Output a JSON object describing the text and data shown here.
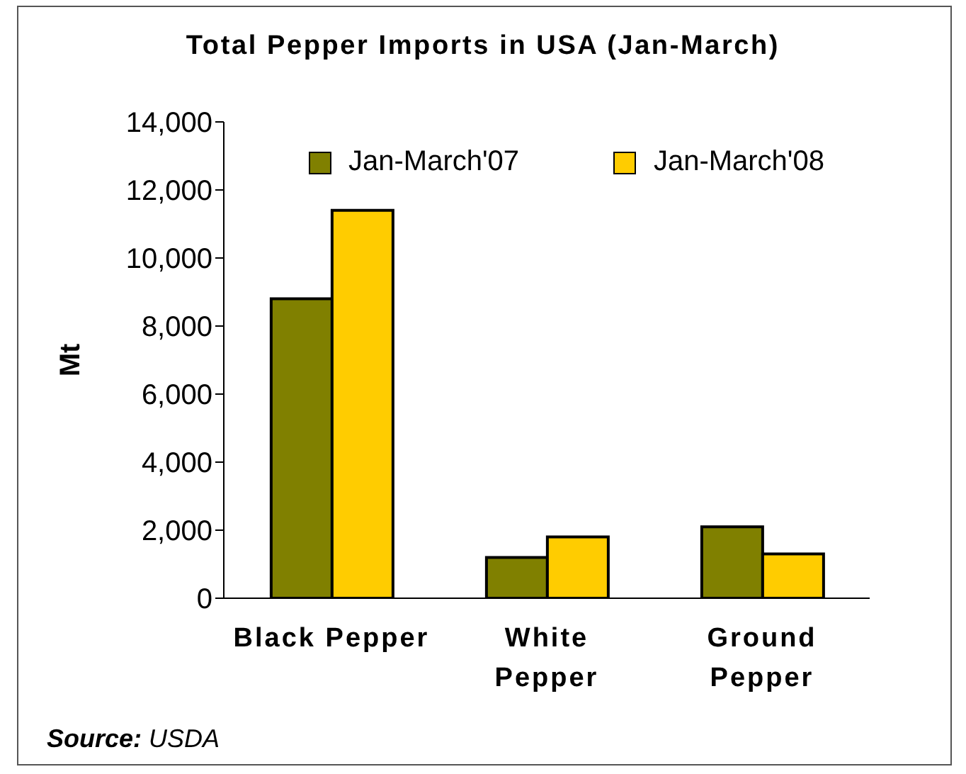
{
  "chart_data": {
    "type": "bar",
    "title": "Total Pepper Imports in USA (Jan-March)",
    "ylabel": "Mt",
    "categories": [
      "Black Pepper",
      "White\nPepper",
      "Ground\nPepper"
    ],
    "series": [
      {
        "name": "Jan-March'07",
        "color": "#808000",
        "values": [
          8800,
          1200,
          2100
        ]
      },
      {
        "name": "Jan-March'08",
        "color": "#ffcc00",
        "values": [
          11400,
          1800,
          1300
        ]
      }
    ],
    "ylim": [
      0,
      14000
    ],
    "yticks": [
      {
        "value": 0,
        "label": "0"
      },
      {
        "value": 2000,
        "label": "2,000"
      },
      {
        "value": 4000,
        "label": "4,000"
      },
      {
        "value": 6000,
        "label": "6,000"
      },
      {
        "value": 8000,
        "label": "8,000"
      },
      {
        "value": 10000,
        "label": "10,000"
      },
      {
        "value": 12000,
        "label": "12,000"
      },
      {
        "value": 14000,
        "label": "14,000"
      }
    ],
    "legend": "top",
    "annotations": [
      "Source: USDA"
    ]
  }
}
